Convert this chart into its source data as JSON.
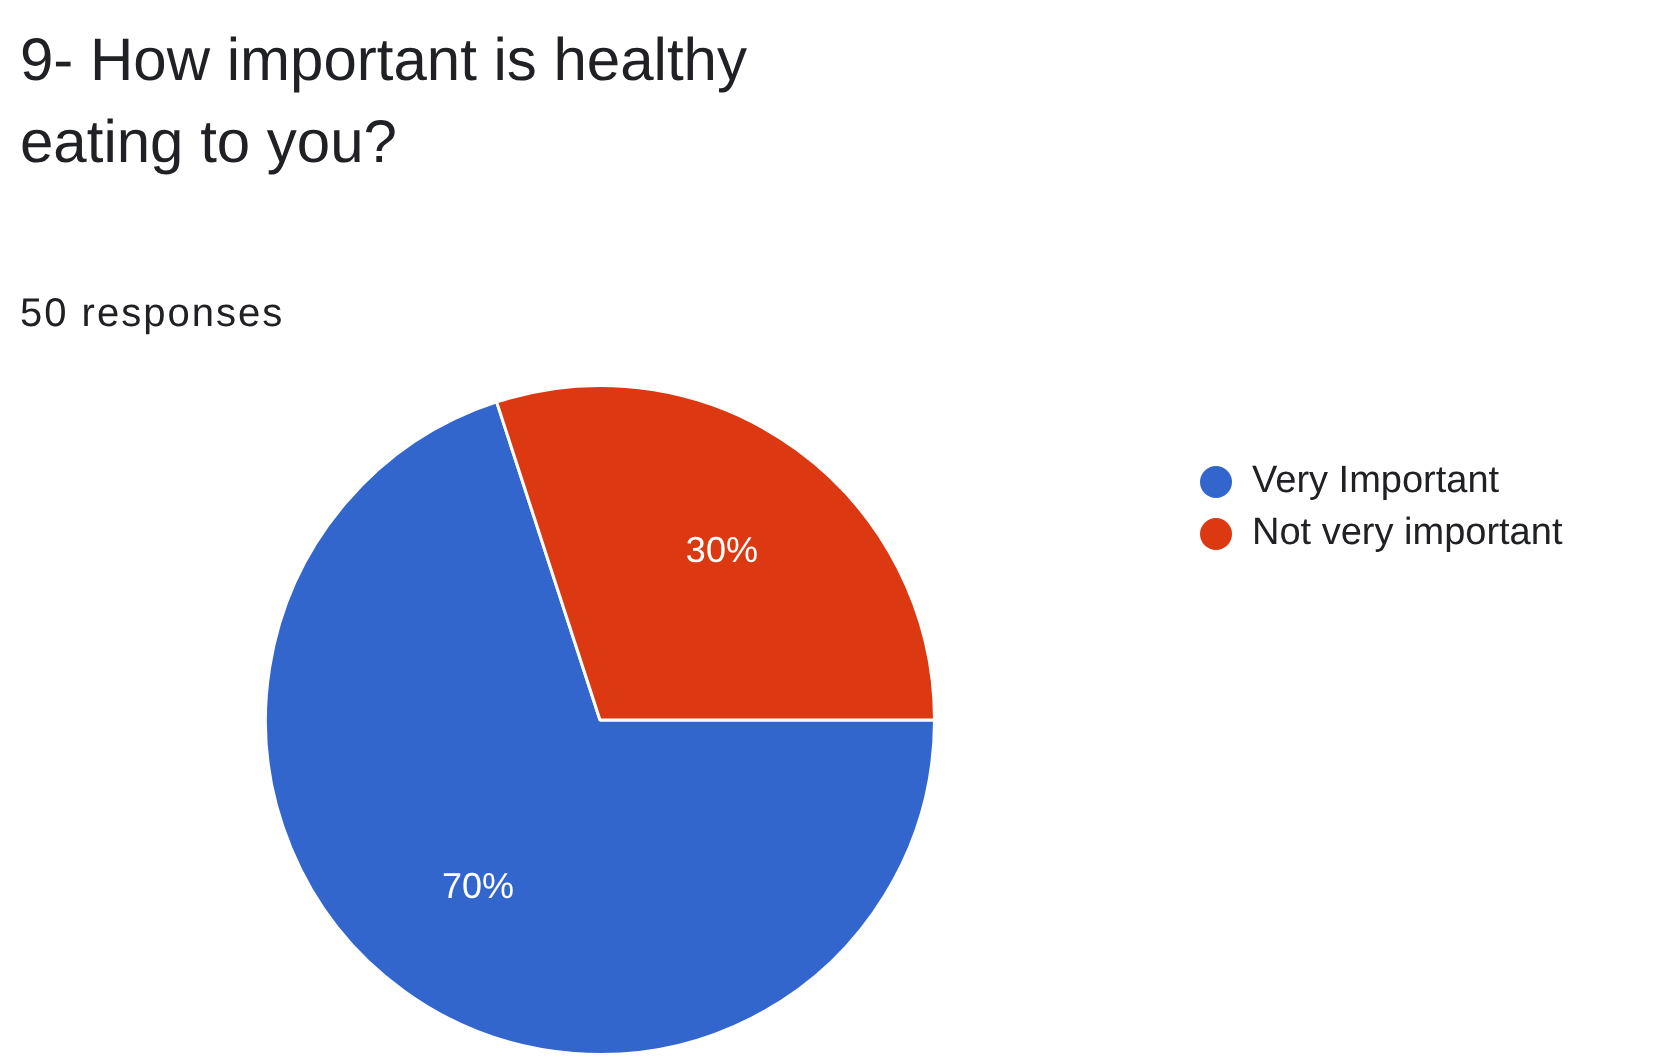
{
  "chart_data": {
    "type": "pie",
    "title": "9- How important is healthy eating to you?",
    "subtitle": "50 responses",
    "categories": [
      "Very Important",
      "Not very important"
    ],
    "values": [
      70,
      30
    ],
    "colors": [
      "#3366cc",
      "#dc3912"
    ],
    "value_labels": [
      "70%",
      "30%"
    ],
    "legend": "top right"
  }
}
